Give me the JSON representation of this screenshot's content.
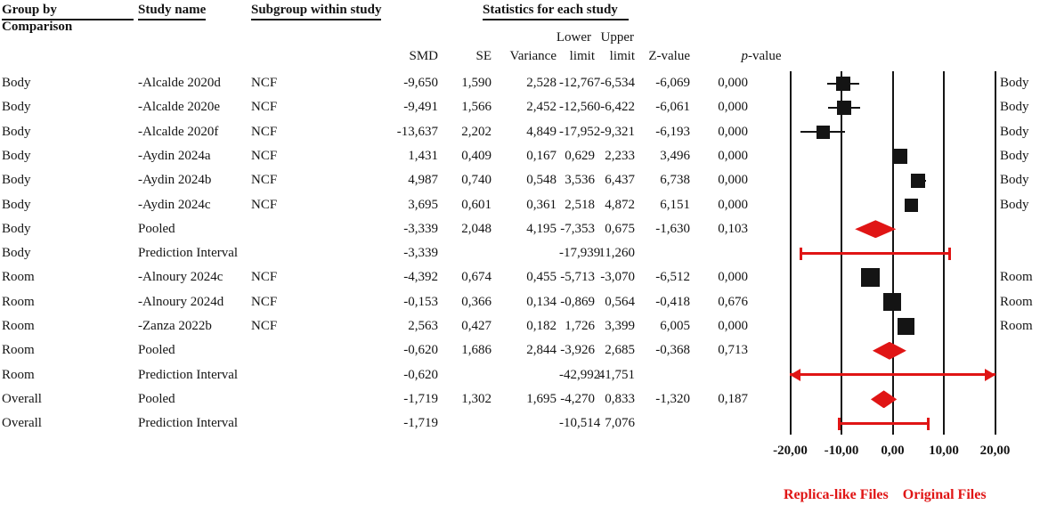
{
  "colors": {
    "red": "#e01515",
    "black": "#141414"
  },
  "header": {
    "group_by": "Group by",
    "comparison": "Comparison",
    "study_name": "Study name",
    "subgroup": "Subgroup within study",
    "statistics": "Statistics for each study",
    "lower": "Lower",
    "upper": "Upper",
    "cols": {
      "smd": "SMD",
      "se": "SE",
      "variance": "Variance",
      "lower_limit": "limit",
      "upper_limit": "limit",
      "z": "Z-value",
      "p_italic": "p",
      "p_rest": "-value"
    }
  },
  "legend": {
    "replica": "Replica-like Files",
    "original": "Original Files"
  },
  "chart_data": {
    "type": "forest",
    "xlim": [
      -20,
      20
    ],
    "ticks": [
      {
        "value": -20,
        "label": "-20,00"
      },
      {
        "value": -10,
        "label": "-10,00"
      },
      {
        "value": 0,
        "label": "0,00"
      },
      {
        "value": 10,
        "label": "10,00"
      },
      {
        "value": 20,
        "label": "20,00"
      }
    ],
    "rows": [
      {
        "group": "Body",
        "study": "-Alcalde 2020d",
        "subgroup": "NCF",
        "stats": {
          "smd": "-9,650",
          "se": "1,590",
          "variance": "2,528",
          "lower": "-12,767",
          "upper": "-6,534",
          "z": "-6,069",
          "p": "0,000"
        },
        "values": {
          "smd": -9.65,
          "lower": -12.767,
          "upper": -6.534
        },
        "marker": {
          "type": "square",
          "size": 16
        },
        "right_label": "Body"
      },
      {
        "group": "Body",
        "study": "-Alcalde 2020e",
        "subgroup": "NCF",
        "stats": {
          "smd": "-9,491",
          "se": "1,566",
          "variance": "2,452",
          "lower": "-12,560",
          "upper": "-6,422",
          "z": "-6,061",
          "p": "0,000"
        },
        "values": {
          "smd": -9.491,
          "lower": -12.56,
          "upper": -6.422
        },
        "marker": {
          "type": "square",
          "size": 16
        },
        "right_label": "Body"
      },
      {
        "group": "Body",
        "study": "-Alcalde 2020f",
        "subgroup": "NCF",
        "stats": {
          "smd": "-13,637",
          "se": "2,202",
          "variance": "4,849",
          "lower": "-17,952",
          "upper": "-9,321",
          "z": "-6,193",
          "p": "0,000"
        },
        "values": {
          "smd": -13.637,
          "lower": -17.952,
          "upper": -9.321
        },
        "marker": {
          "type": "square",
          "size": 15
        },
        "right_label": "Body"
      },
      {
        "group": "Body",
        "study": "-Aydin 2024a",
        "subgroup": "NCF",
        "stats": {
          "smd": "1,431",
          "se": "0,409",
          "variance": "0,167",
          "lower": "0,629",
          "upper": "2,233",
          "z": "3,496",
          "p": "0,000"
        },
        "values": {
          "smd": 1.431,
          "lower": 0.629,
          "upper": 2.233
        },
        "marker": {
          "type": "square",
          "size": 17
        },
        "right_label": "Body"
      },
      {
        "group": "Body",
        "study": "-Aydin 2024b",
        "subgroup": "NCF",
        "stats": {
          "smd": "4,987",
          "se": "0,740",
          "variance": "0,548",
          "lower": "3,536",
          "upper": "6,437",
          "z": "6,738",
          "p": "0,000"
        },
        "values": {
          "smd": 4.987,
          "lower": 3.536,
          "upper": 6.437
        },
        "marker": {
          "type": "square",
          "size": 16
        },
        "right_label": "Body"
      },
      {
        "group": "Body",
        "study": "-Aydin 2024c",
        "subgroup": "NCF",
        "stats": {
          "smd": "3,695",
          "se": "0,601",
          "variance": "0,361",
          "lower": "2,518",
          "upper": "4,872",
          "z": "6,151",
          "p": "0,000"
        },
        "values": {
          "smd": 3.695,
          "lower": 2.518,
          "upper": 4.872
        },
        "marker": {
          "type": "square",
          "size": 15
        },
        "right_label": "Body"
      },
      {
        "group": "Body",
        "study": "Pooled",
        "subgroup": "",
        "stats": {
          "smd": "-3,339",
          "se": "2,048",
          "variance": "4,195",
          "lower": "-7,353",
          "upper": "0,675",
          "z": "-1,630",
          "p": "0,103"
        },
        "values": {
          "smd": -3.339,
          "lower": -7.353,
          "upper": 0.675
        },
        "marker": {
          "type": "diamond"
        }
      },
      {
        "group": "Body",
        "study": "Prediction Interval",
        "subgroup": "",
        "stats": {
          "smd": "-3,339",
          "lower": "-17,939",
          "upper": "11,260"
        },
        "values": {
          "smd": -3.339,
          "lower": -17.939,
          "upper": 11.26
        },
        "marker": {
          "type": "interval"
        }
      },
      {
        "group": "Room",
        "study": "-Alnoury 2024c",
        "subgroup": "NCF",
        "stats": {
          "smd": "-4,392",
          "se": "0,674",
          "variance": "0,455",
          "lower": "-5,713",
          "upper": "-3,070",
          "z": "-6,512",
          "p": "0,000"
        },
        "values": {
          "smd": -4.392,
          "lower": -5.713,
          "upper": -3.07
        },
        "marker": {
          "type": "square",
          "size": 21
        },
        "right_label": "Room"
      },
      {
        "group": "Room",
        "study": "-Alnoury 2024d",
        "subgroup": "NCF",
        "stats": {
          "smd": "-0,153",
          "se": "0,366",
          "variance": "0,134",
          "lower": "-0,869",
          "upper": "0,564",
          "z": "-0,418",
          "p": "0,676"
        },
        "values": {
          "smd": -0.153,
          "lower": -0.869,
          "upper": 0.564
        },
        "marker": {
          "type": "square",
          "size": 20
        },
        "right_label": "Room"
      },
      {
        "group": "Room",
        "study": "-Zanza 2022b",
        "subgroup": "NCF",
        "stats": {
          "smd": "2,563",
          "se": "0,427",
          "variance": "0,182",
          "lower": "1,726",
          "upper": "3,399",
          "z": "6,005",
          "p": "0,000"
        },
        "values": {
          "smd": 2.563,
          "lower": 1.726,
          "upper": 3.399
        },
        "marker": {
          "type": "square",
          "size": 19
        },
        "right_label": "Room"
      },
      {
        "group": "Room",
        "study": "Pooled",
        "subgroup": "",
        "stats": {
          "smd": "-0,620",
          "se": "1,686",
          "variance": "2,844",
          "lower": "-3,926",
          "upper": "2,685",
          "z": "-0,368",
          "p": "0,713"
        },
        "values": {
          "smd": -0.62,
          "lower": -3.926,
          "upper": 2.685
        },
        "marker": {
          "type": "diamond"
        }
      },
      {
        "group": "Room",
        "study": "Prediction Interval",
        "subgroup": "",
        "stats": {
          "smd": "-0,620",
          "lower": "-42,992",
          "upper": "41,751"
        },
        "values": {
          "smd": -0.62,
          "lower": -42.992,
          "upper": 41.751
        },
        "marker": {
          "type": "interval"
        }
      },
      {
        "group": "Overall",
        "study": "Pooled",
        "subgroup": "",
        "stats": {
          "smd": "-1,719",
          "se": "1,302",
          "variance": "1,695",
          "lower": "-4,270",
          "upper": "0,833",
          "z": "-1,320",
          "p": "0,187"
        },
        "values": {
          "smd": -1.719,
          "lower": -4.27,
          "upper": 0.833
        },
        "marker": {
          "type": "diamond"
        }
      },
      {
        "group": "Overall",
        "study": "Prediction Interval",
        "subgroup": "",
        "stats": {
          "smd": "-1,719",
          "lower": "-10,514",
          "upper": "7,076"
        },
        "values": {
          "smd": -1.719,
          "lower": -10.514,
          "upper": 7.076
        },
        "marker": {
          "type": "interval"
        }
      }
    ]
  }
}
